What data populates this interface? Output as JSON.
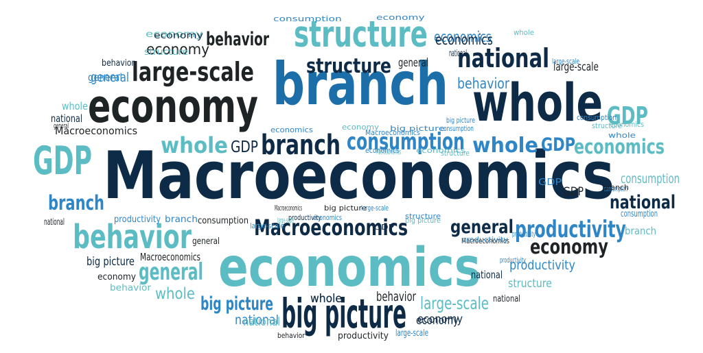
{
  "palette": {
    "navy": "#0d2a46",
    "black": "#1e2326",
    "blue": "#2f86c7",
    "teal": "#5cbcc4",
    "mid_blue": "#1c6ea8"
  },
  "words": [
    {
      "text": "Macroeconomics",
      "color": "navy"
    },
    {
      "text": "economics",
      "color": "teal"
    },
    {
      "text": "branch",
      "color": "mid_blue"
    },
    {
      "text": "economy",
      "color": "black"
    },
    {
      "text": "whole",
      "color": "navy"
    },
    {
      "text": "structure",
      "color": "teal"
    },
    {
      "text": "big picture",
      "color": "navy"
    },
    {
      "text": "large-scale",
      "color": "black"
    },
    {
      "text": "national",
      "color": "navy"
    },
    {
      "text": "behavior",
      "color": "teal"
    },
    {
      "text": "GDP",
      "color": "teal"
    },
    {
      "text": "consumption",
      "color": "blue"
    },
    {
      "text": "productivity",
      "color": "blue"
    },
    {
      "text": "Macroeconomics",
      "color": "navy"
    },
    {
      "text": "general",
      "color": "navy"
    },
    {
      "text": "economy",
      "color": "black"
    },
    {
      "text": "behavior",
      "color": "black"
    },
    {
      "text": "economy",
      "color": "black"
    },
    {
      "text": "structure",
      "color": "navy"
    },
    {
      "text": "economics",
      "color": "blue"
    },
    {
      "text": "national",
      "color": "navy"
    },
    {
      "text": "whole",
      "color": "teal"
    },
    {
      "text": "branch",
      "color": "navy"
    },
    {
      "text": "GDP",
      "color": "teal"
    },
    {
      "text": "whole",
      "color": "blue"
    },
    {
      "text": "GDP",
      "color": "blue"
    },
    {
      "text": "economics",
      "color": "teal"
    },
    {
      "text": "branch",
      "color": "blue"
    },
    {
      "text": "general",
      "color": "teal"
    },
    {
      "text": "whole",
      "color": "teal"
    },
    {
      "text": "big picture",
      "color": "blue"
    },
    {
      "text": "general",
      "color": "blue"
    },
    {
      "text": "national",
      "color": "blue"
    },
    {
      "text": "whole",
      "color": "black"
    },
    {
      "text": "behavior",
      "color": "black"
    },
    {
      "text": "large-scale",
      "color": "teal"
    },
    {
      "text": "economy",
      "color": "navy"
    },
    {
      "text": "productivity",
      "color": "blue"
    },
    {
      "text": "structure",
      "color": "teal"
    },
    {
      "text": "consumption",
      "color": "teal"
    },
    {
      "text": "national",
      "color": "navy"
    },
    {
      "text": "behavior",
      "color": "blue"
    },
    {
      "text": "large-scale",
      "color": "black"
    },
    {
      "text": "GDP",
      "color": "navy"
    },
    {
      "text": "economics",
      "color": "navy"
    },
    {
      "text": "consumption",
      "color": "blue"
    },
    {
      "text": "general",
      "color": "black"
    },
    {
      "text": "Macroeconomics",
      "color": "black"
    },
    {
      "text": "branch",
      "color": "teal"
    },
    {
      "text": "big picture",
      "color": "navy"
    },
    {
      "text": "behavior",
      "color": "teal"
    },
    {
      "text": "economy",
      "color": "teal"
    },
    {
      "text": "structure",
      "color": "teal"
    },
    {
      "text": "economy",
      "color": "teal"
    },
    {
      "text": "national",
      "color": "black"
    },
    {
      "text": "general",
      "color": "blue"
    },
    {
      "text": "whole",
      "color": "teal"
    },
    {
      "text": "general",
      "color": "black"
    },
    {
      "text": "Macroeconomics",
      "color": "black"
    },
    {
      "text": "GDP",
      "color": "black"
    },
    {
      "text": "national",
      "color": "navy"
    },
    {
      "text": "productivity",
      "color": "blue"
    },
    {
      "text": "branch",
      "color": "blue"
    },
    {
      "text": "consumption",
      "color": "black"
    },
    {
      "text": "large-scale",
      "color": "blue"
    },
    {
      "text": "productivity",
      "color": "navy"
    },
    {
      "text": "GDP",
      "color": "navy"
    },
    {
      "text": "big picture",
      "color": "teal"
    },
    {
      "text": "general",
      "color": "black"
    },
    {
      "text": "Macroeconomics",
      "color": "black"
    },
    {
      "text": "economy",
      "color": "black"
    },
    {
      "text": "whole",
      "color": "navy"
    },
    {
      "text": "behavior",
      "color": "navy"
    },
    {
      "text": "economy",
      "color": "navy"
    },
    {
      "text": "national",
      "color": "teal"
    },
    {
      "text": "behavior",
      "color": "black"
    },
    {
      "text": "productivity",
      "color": "black"
    },
    {
      "text": "large-scale",
      "color": "blue"
    },
    {
      "text": "large-scale",
      "color": "teal"
    },
    {
      "text": "national",
      "color": "black"
    },
    {
      "text": "economy",
      "color": "navy"
    },
    {
      "text": "productivity",
      "color": "blue"
    },
    {
      "text": "consumption",
      "color": "blue"
    },
    {
      "text": "structure",
      "color": "teal"
    },
    {
      "text": "economics",
      "color": "blue"
    },
    {
      "text": "consumption",
      "color": "blue"
    },
    {
      "text": "whole",
      "color": "blue"
    },
    {
      "text": "GDP",
      "color": "blue"
    },
    {
      "text": "economics",
      "color": "teal"
    },
    {
      "text": "structure",
      "color": "teal"
    },
    {
      "text": "consumption",
      "color": "blue"
    },
    {
      "text": "branch",
      "color": "black"
    },
    {
      "text": "national",
      "color": "navy"
    },
    {
      "text": "whole",
      "color": "teal"
    },
    {
      "text": "Macroeconomics",
      "color": "teal"
    },
    {
      "text": "big picture",
      "color": "blue"
    },
    {
      "text": "consumption",
      "color": "blue"
    },
    {
      "text": "economics",
      "color": "blue"
    },
    {
      "text": "economy",
      "color": "blue"
    },
    {
      "text": "Macroeconomics",
      "color": "black"
    },
    {
      "text": "big picture",
      "color": "black"
    },
    {
      "text": "economics",
      "color": "blue"
    },
    {
      "text": "large-scale",
      "color": "blue"
    },
    {
      "text": "structure",
      "color": "blue"
    },
    {
      "text": "productivity",
      "color": "blue"
    },
    {
      "text": "large-scale",
      "color": "blue"
    },
    {
      "text": "productivity",
      "color": "blue"
    },
    {
      "text": "big picture",
      "color": "blue"
    },
    {
      "text": "Macroeconomics",
      "color": "blue"
    },
    {
      "text": "economics",
      "color": "teal"
    }
  ]
}
